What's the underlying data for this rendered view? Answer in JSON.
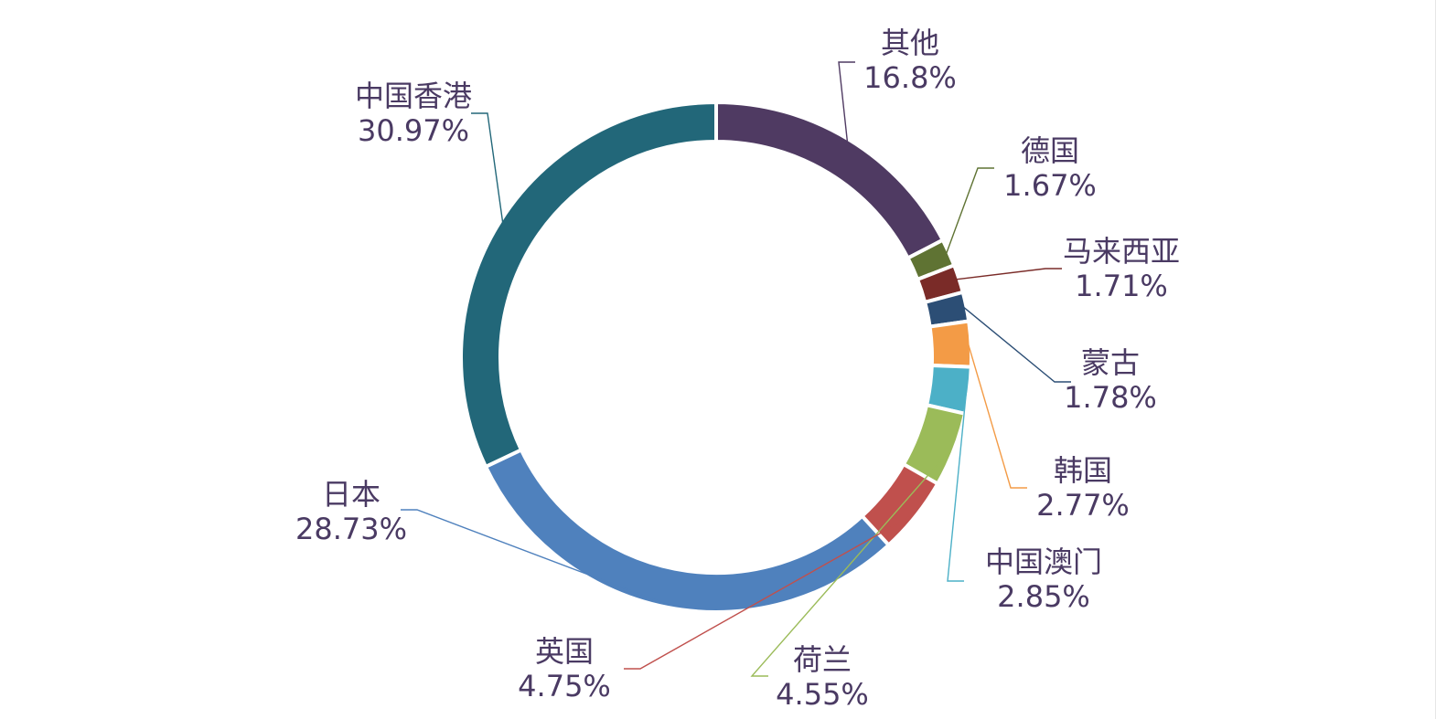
{
  "chart_data": {
    "type": "pie",
    "variant": "donut",
    "title": "",
    "legend": "none",
    "slices": [
      {
        "name": "其他",
        "value": 16.8,
        "label": "16.8%",
        "color": "#4f3a62"
      },
      {
        "name": "德国",
        "value": 1.67,
        "label": "1.67%",
        "color": "#5f7333"
      },
      {
        "name": "马来西亚",
        "value": 1.71,
        "label": "1.71%",
        "color": "#7a2b28"
      },
      {
        "name": "蒙古",
        "value": 1.78,
        "label": "1.78%",
        "color": "#2c4e75"
      },
      {
        "name": "韩国",
        "value": 2.77,
        "label": "2.77%",
        "color": "#f39b46"
      },
      {
        "name": "中国澳门",
        "value": 2.85,
        "label": "2.85%",
        "color": "#4cb0c7"
      },
      {
        "name": "荷兰",
        "value": 4.55,
        "label": "4.55%",
        "color": "#9bbb59"
      },
      {
        "name": "英国",
        "value": 4.75,
        "label": "4.75%",
        "color": "#c0504d"
      },
      {
        "name": "日本",
        "value": 28.73,
        "label": "28.73%",
        "color": "#4f81bd"
      },
      {
        "name": "中国香港",
        "value": 30.97,
        "label": "30.97%",
        "color": "#226779"
      }
    ]
  }
}
